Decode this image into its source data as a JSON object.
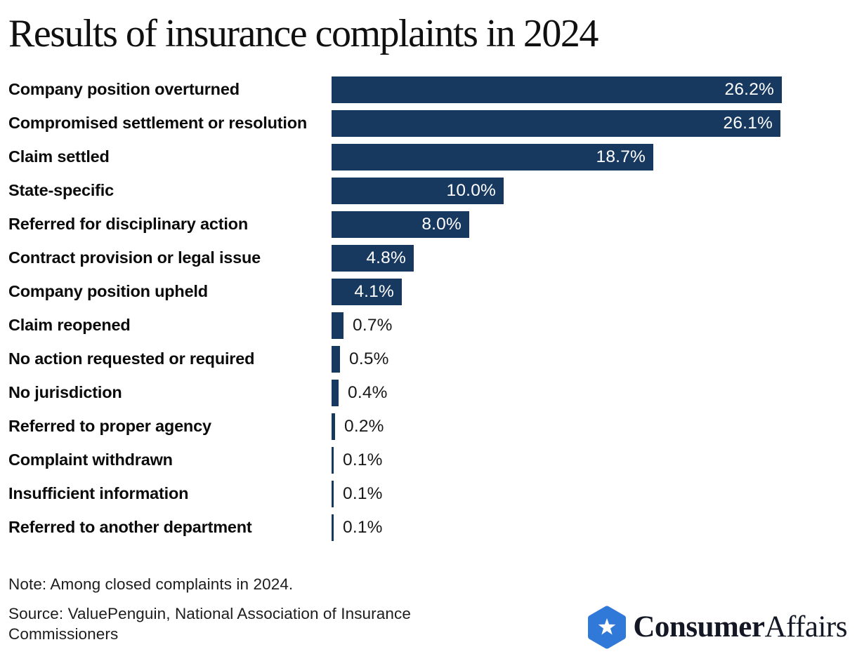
{
  "title": "Results of insurance complaints in 2024",
  "note": "Note: Among closed complaints in 2024.",
  "source": "Source: ValuePenguin, National Association of Insurance Commissioners",
  "logo": {
    "brand_bold": "Consumer",
    "brand_regular": "Affairs",
    "badge_icon": "hexagon-star-icon"
  },
  "colors": {
    "bar": "#17395F",
    "value_label_inside": "#FFFFFF",
    "value_label_outside": "#181818",
    "category_label": "#0B0B0B",
    "logo_hexagon_blue": "#3179D8",
    "logo_star": "#FFFFFF",
    "logo_text": "#141824",
    "background": "#FFFFFF"
  },
  "chart_data": {
    "type": "bar",
    "orientation": "horizontal",
    "title": "Results of insurance complaints in 2024",
    "xlabel": "",
    "ylabel": "",
    "unit": "percent",
    "grid": false,
    "legend": false,
    "scale_max_percent": 26.2,
    "inside_label_min_percent": 4.1,
    "categories": [
      "Company position overturned",
      "Compromised settlement or resolution",
      "Claim settled",
      "State-specific",
      "Referred for disciplinary action",
      "Contract provision or legal issue",
      "Company position upheld",
      "Claim reopened",
      "No action requested or required",
      "No jurisdiction",
      "Referred to proper agency",
      "Complaint withdrawn",
      "Insufficient information",
      "Referred to another department"
    ],
    "values": [
      26.2,
      26.1,
      18.7,
      10.0,
      8.0,
      4.8,
      4.1,
      0.7,
      0.5,
      0.4,
      0.2,
      0.1,
      0.1,
      0.1
    ],
    "value_labels": [
      "26.2%",
      "26.1%",
      "18.7%",
      "10.0%",
      "8.0%",
      "4.8%",
      "4.1%",
      "0.7%",
      "0.5%",
      "0.4%",
      "0.2%",
      "0.1%",
      "0.1%",
      "0.1%"
    ]
  }
}
